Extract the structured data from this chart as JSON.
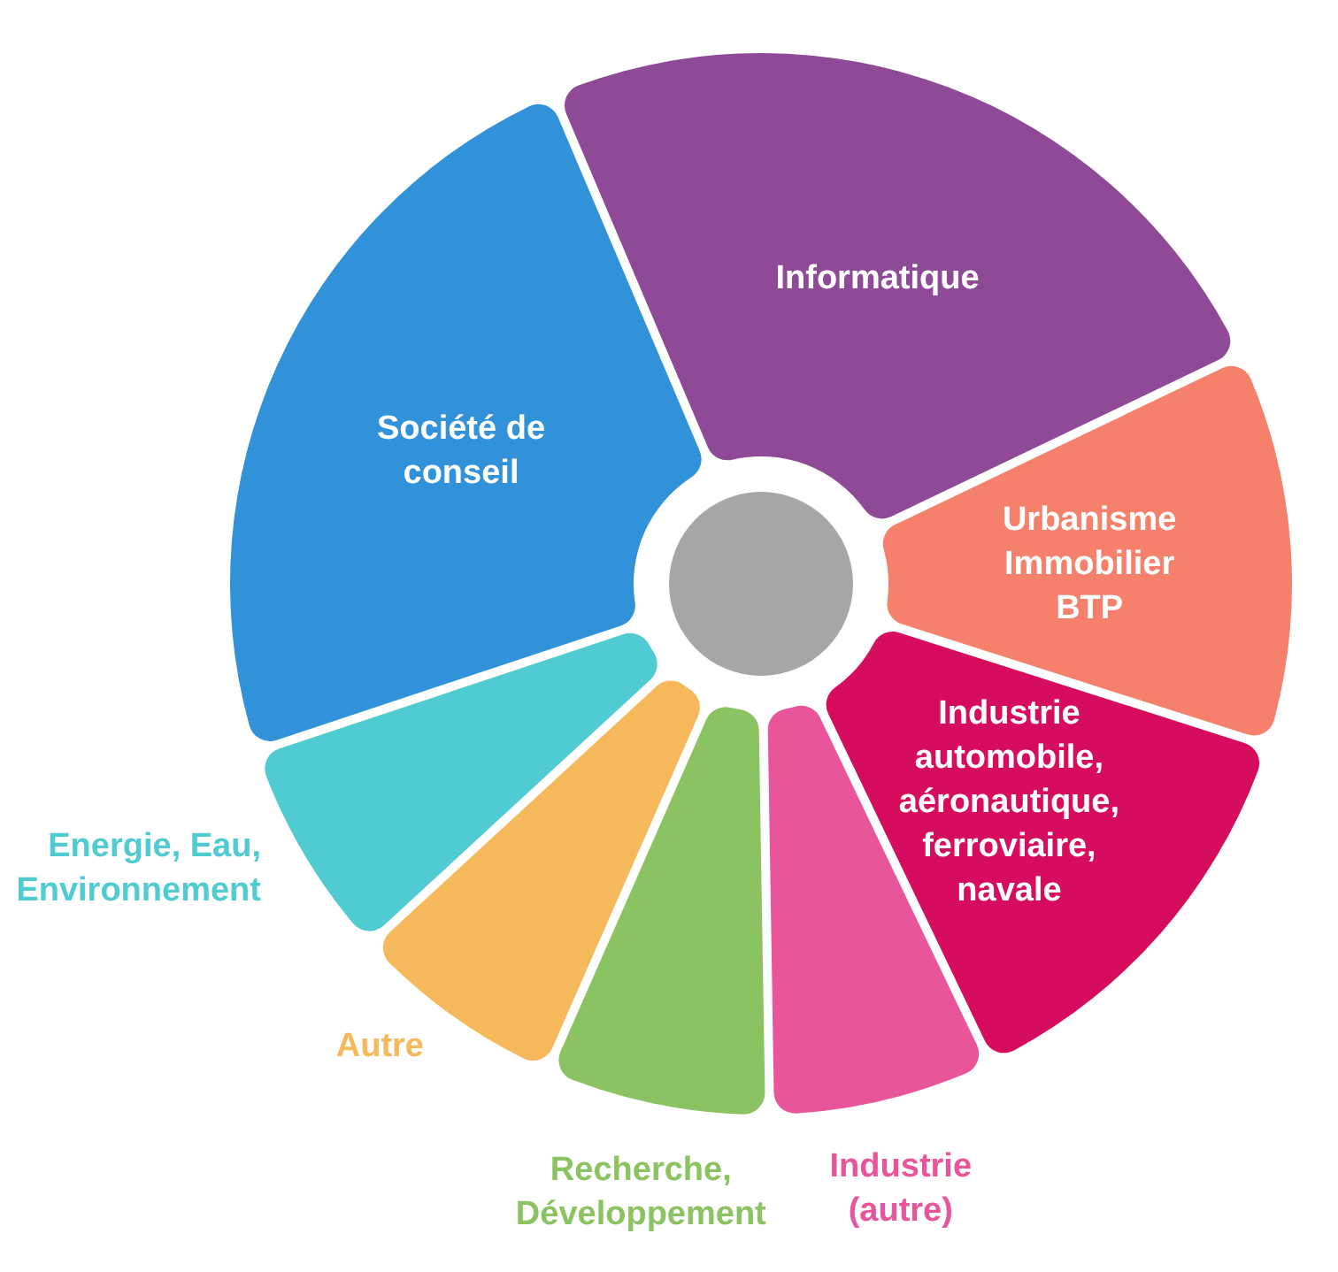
{
  "chart_data": {
    "type": "donut",
    "categories": [
      "Informatique",
      "Urbanisme Immobilier BTP",
      "Industrie automobile, aéronautique, ferroviaire, navale",
      "Industrie (autre)",
      "Recherche, Développement",
      "Autre",
      "Energie, Eau, Environnement",
      "Société de conseil"
    ],
    "values": [
      25,
      12,
      13,
      6.5,
      6.5,
      6.2,
      6.4,
      24.4
    ],
    "colors": [
      "#8e4a96",
      "#f5806b",
      "#d60c5e",
      "#e8559a",
      "#8bc262",
      "#f5b95c",
      "#50cbd2",
      "#3191d9"
    ]
  }
}
